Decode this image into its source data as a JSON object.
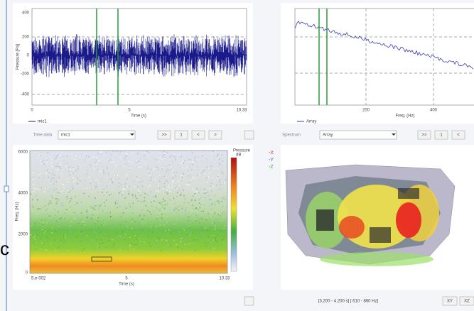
{
  "time_plot": {
    "y_label": "Pressure [Pa]",
    "x_label": "Time (s)",
    "y_ticks": [
      "400",
      "200",
      "0",
      "-200",
      "-400"
    ],
    "x_ticks": [
      "0",
      "5",
      "10.33"
    ],
    "legend": "mic1"
  },
  "spectrum_plot": {
    "x_label": "Freq. (Hz)",
    "x_ticks": [
      "200",
      "400"
    ],
    "legend": "Array"
  },
  "time_controls": {
    "label": "Time data",
    "select": "mic1",
    "buttons": [
      ">>",
      "1",
      "<",
      ">"
    ]
  },
  "spectrum_controls": {
    "label": "Spectrum",
    "select": "Array",
    "buttons": [
      ">>",
      "1",
      "<"
    ]
  },
  "spectrogram": {
    "y_label": "Freq. (Hz)",
    "y_ticks": [
      "6000",
      "4000",
      "2000",
      "0"
    ],
    "x_label": "Time (s)",
    "x_ticks": [
      "5.e-002",
      "5",
      "10.33"
    ],
    "colorbar_title": "Pressure",
    "colorbar_unit": "dB"
  },
  "axes_legend": [
    "-X",
    "-Y",
    "-Z"
  ],
  "status": "[3.200 - 4.200 s] [ 610 - 860 Hz]",
  "view_buttons": [
    "XY",
    "XZ"
  ]
}
